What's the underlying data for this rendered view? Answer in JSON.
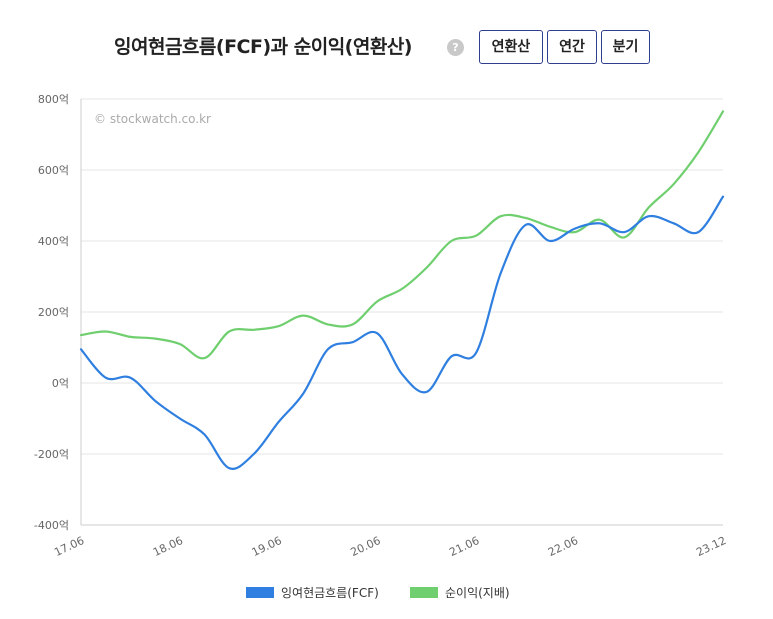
{
  "header": {
    "title": "잉여현금흐름(FCF)과 순이익(연환산)",
    "help_icon": "?",
    "buttons": [
      {
        "label": "연환산",
        "active": true
      },
      {
        "label": "연간",
        "active": false
      },
      {
        "label": "분기",
        "active": false
      }
    ]
  },
  "chart_data": {
    "type": "line",
    "watermark": "© stockwatch.co.kr",
    "unit": "억",
    "ylim": [
      -400,
      800
    ],
    "yticks": [
      -400,
      -200,
      0,
      200,
      400,
      600,
      800
    ],
    "ytick_labels": [
      "-400억",
      "-200억",
      "0억",
      "200억",
      "400억",
      "600억",
      "800억"
    ],
    "xlim": [
      0,
      26
    ],
    "xticks": [
      0,
      4,
      8,
      12,
      16,
      20,
      26
    ],
    "xtick_labels": [
      "17.06",
      "18.06",
      "19.06",
      "20.06",
      "21.06",
      "22.06",
      "23.12"
    ],
    "grid": true,
    "legend_position": "bottom",
    "series": [
      {
        "name": "잉여현금흐름(FCF)",
        "color": "#2f7fe0",
        "x": [
          0,
          1,
          2,
          3,
          4,
          5,
          6,
          7,
          8,
          9,
          10,
          11,
          12,
          13,
          14,
          15,
          16,
          17,
          18,
          19,
          20,
          21,
          22,
          23,
          24,
          25,
          26
        ],
        "values": [
          95,
          15,
          15,
          -50,
          -100,
          -145,
          -240,
          -200,
          -110,
          -30,
          95,
          115,
          140,
          25,
          -25,
          75,
          85,
          310,
          445,
          400,
          435,
          450,
          425,
          470,
          450,
          425,
          525
        ]
      },
      {
        "name": "순이익(지배)",
        "color": "#6fcf6f",
        "x": [
          0,
          1,
          2,
          3,
          4,
          5,
          6,
          7,
          8,
          9,
          10,
          11,
          12,
          13,
          14,
          15,
          16,
          17,
          18,
          19,
          20,
          21,
          22,
          23,
          24,
          25,
          26
        ],
        "values": [
          135,
          145,
          130,
          125,
          110,
          70,
          145,
          150,
          160,
          190,
          165,
          165,
          230,
          265,
          325,
          400,
          415,
          470,
          465,
          440,
          425,
          460,
          410,
          495,
          560,
          650,
          765
        ]
      }
    ]
  }
}
